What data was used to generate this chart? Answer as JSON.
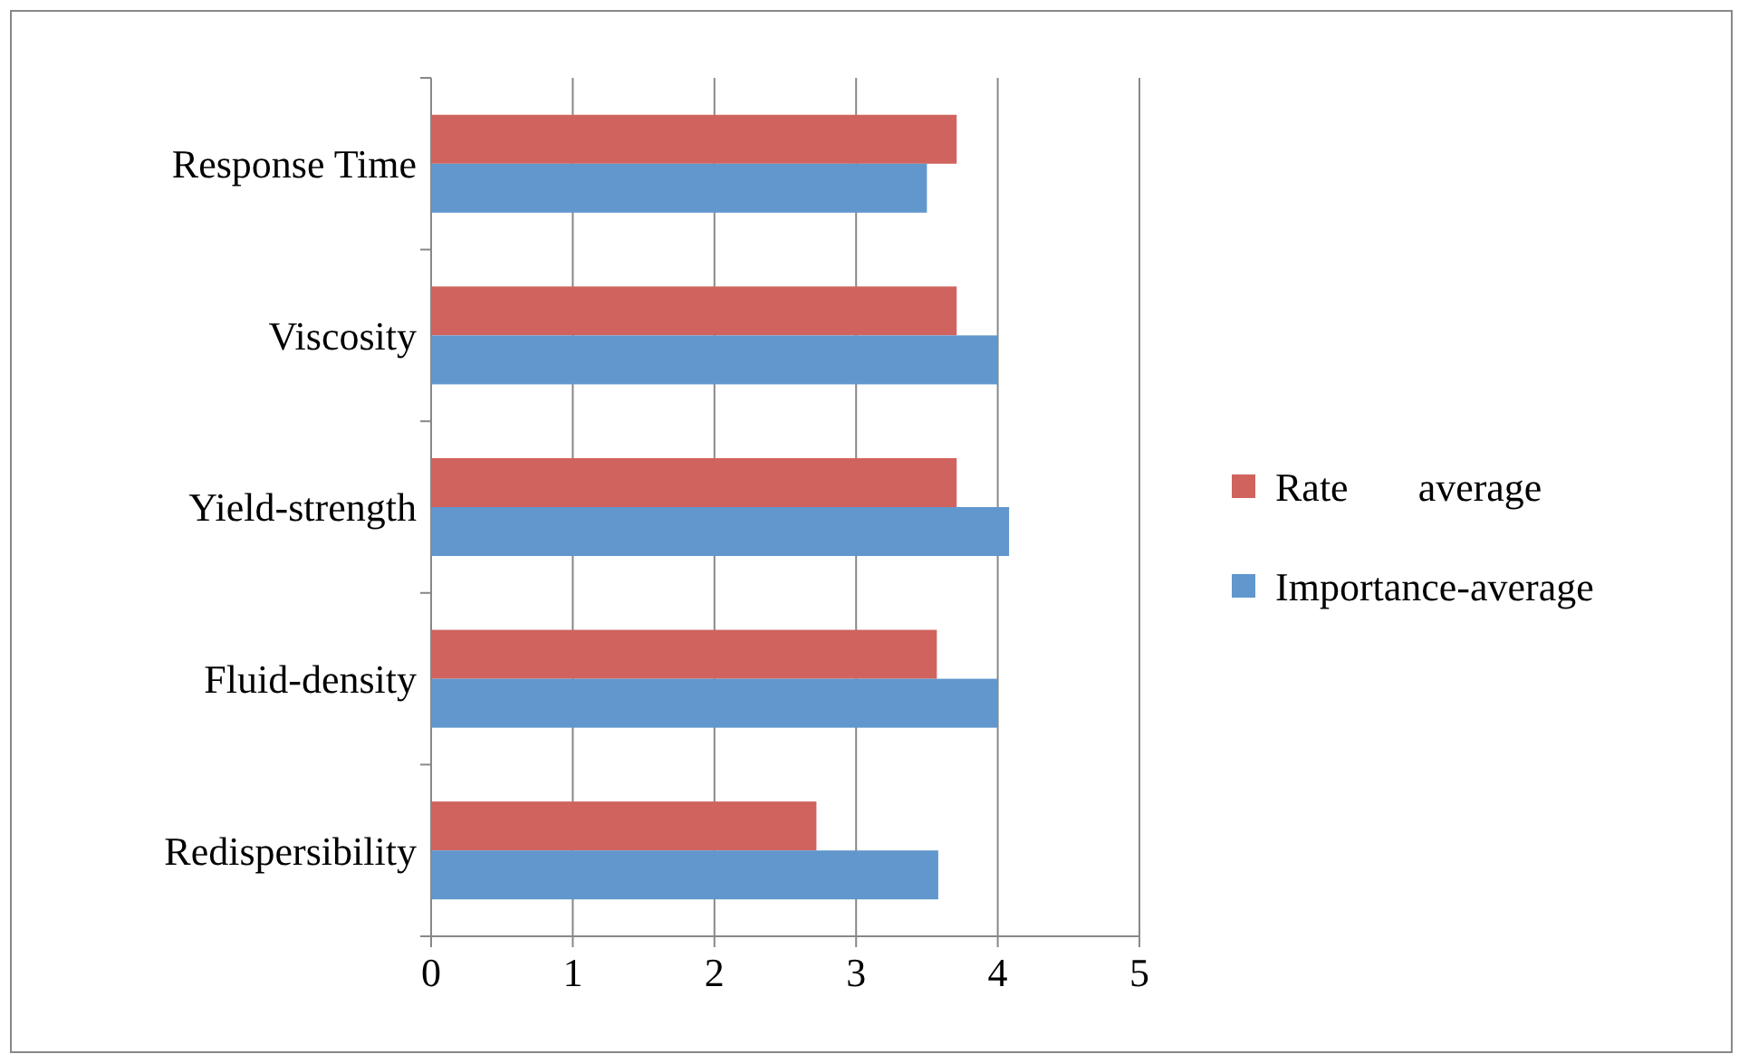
{
  "chart_data": {
    "type": "bar",
    "orientation": "horizontal",
    "categories": [
      "Response Time",
      "Viscosity",
      "Yield-strength",
      "Fluid-density",
      "Redispersibility"
    ],
    "series": [
      {
        "name": "Rate       average",
        "color": "#d0635d",
        "values": [
          3.71,
          3.71,
          3.71,
          3.57,
          2.72
        ]
      },
      {
        "name": "Importance-average",
        "color": "#6197cd",
        "values": [
          3.5,
          4.0,
          4.08,
          4.0,
          3.58
        ]
      }
    ],
    "xlim": [
      0,
      5
    ],
    "xticks": [
      0,
      1,
      2,
      3,
      4,
      5
    ],
    "grid": "x",
    "legend": "right"
  }
}
